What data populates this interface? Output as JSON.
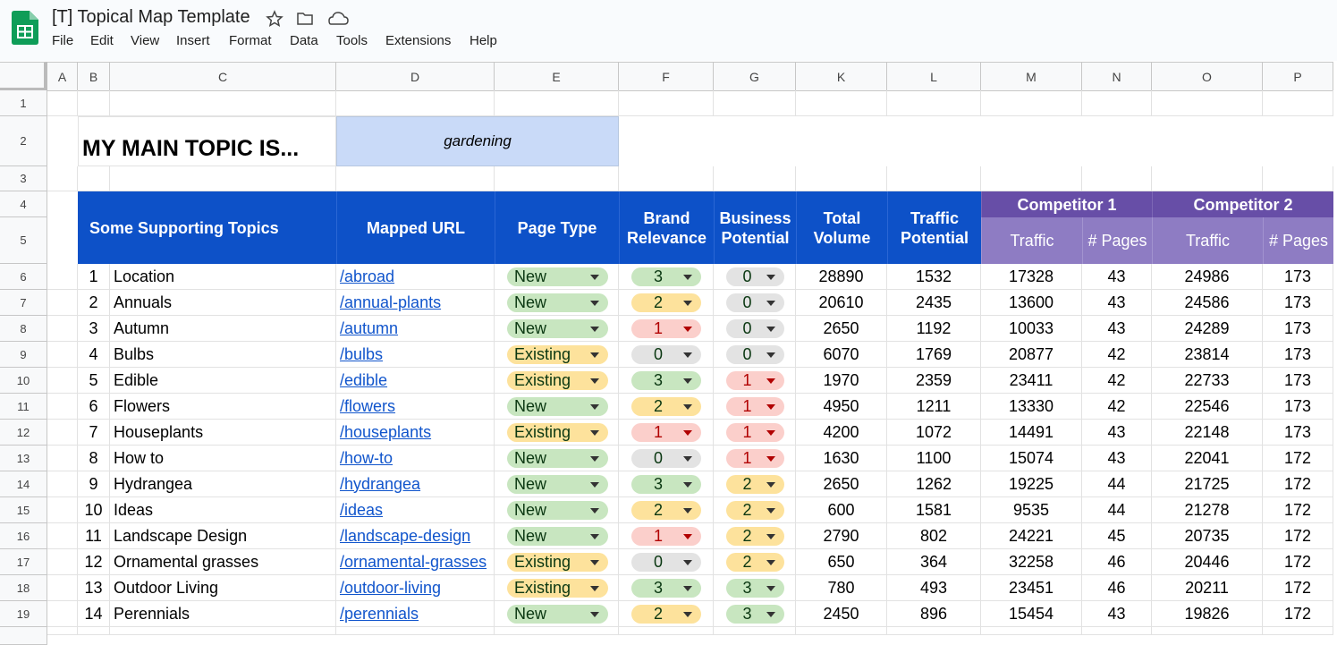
{
  "header": {
    "title": "[T] Topical Map Template",
    "menu": [
      "File",
      "Edit",
      "View",
      "Insert",
      "Format",
      "Data",
      "Tools",
      "Extensions",
      "Help"
    ]
  },
  "column_headers": [
    "A",
    "B",
    "C",
    "D",
    "E",
    "F",
    "G",
    "K",
    "L",
    "M",
    "N",
    "O",
    "P"
  ],
  "row_numbers": [
    1,
    2,
    3,
    4,
    5,
    6,
    7,
    8,
    9,
    10,
    11,
    12,
    13,
    14,
    15,
    16,
    17,
    18,
    19
  ],
  "main_topic": {
    "label": "MY MAIN TOPIC IS...",
    "value": "gardening"
  },
  "table": {
    "headers": {
      "topics": "Some Supporting Topics",
      "url": "Mapped URL",
      "page_type": "Page Type",
      "brand": "Brand Relevance",
      "business": "Business Potential",
      "volume": "Total Volume",
      "traffic_potential": "Traffic Potential",
      "competitors": [
        {
          "name": "Competitor 1",
          "traffic": "Traffic",
          "pages": "# Pages"
        },
        {
          "name": "Competitor 2",
          "traffic": "Traffic",
          "pages": "# Pages"
        }
      ]
    },
    "rows": [
      [
        1,
        "Location",
        "/abroad",
        "New",
        3,
        0,
        28890,
        1532,
        17328,
        43,
        24986,
        173
      ],
      [
        2,
        "Annuals",
        "/annual-plants",
        "New",
        2,
        0,
        20610,
        2435,
        13600,
        43,
        24586,
        173
      ],
      [
        3,
        "Autumn",
        "/autumn",
        "New",
        1,
        0,
        2650,
        1192,
        10033,
        43,
        24289,
        173
      ],
      [
        4,
        "Bulbs",
        "/bulbs",
        "Existing",
        0,
        0,
        6070,
        1769,
        20877,
        42,
        23814,
        173
      ],
      [
        5,
        "Edible",
        "/edible",
        "Existing",
        3,
        1,
        1970,
        2359,
        23411,
        42,
        22733,
        173
      ],
      [
        6,
        "Flowers",
        "/flowers",
        "New",
        2,
        1,
        4950,
        1211,
        13330,
        42,
        22546,
        173
      ],
      [
        7,
        "Houseplants",
        "/houseplants",
        "Existing",
        1,
        1,
        4200,
        1072,
        14491,
        43,
        22148,
        173
      ],
      [
        8,
        "How to",
        "/how-to",
        "New",
        0,
        1,
        1630,
        1100,
        15074,
        43,
        22041,
        172
      ],
      [
        9,
        "Hydrangea",
        "/hydrangea",
        "New",
        3,
        2,
        2650,
        1262,
        19225,
        44,
        21725,
        172
      ],
      [
        10,
        "Ideas",
        "/ideas",
        "New",
        2,
        2,
        600,
        1581,
        9535,
        44,
        21278,
        172
      ],
      [
        11,
        "Landscape Design",
        "/landscape-design",
        "New",
        1,
        2,
        2790,
        802,
        24221,
        45,
        20735,
        172
      ],
      [
        12,
        "Ornamental grasses",
        "/ornamental-grasses",
        "Existing",
        0,
        2,
        650,
        364,
        32258,
        46,
        20446,
        172
      ],
      [
        13,
        "Outdoor Living",
        "/outdoor-living",
        "Existing",
        3,
        3,
        780,
        493,
        23451,
        46,
        20211,
        172
      ],
      [
        14,
        "Perennials",
        "/perennials",
        "New",
        2,
        3,
        2450,
        896,
        15454,
        43,
        19826,
        172
      ]
    ]
  }
}
